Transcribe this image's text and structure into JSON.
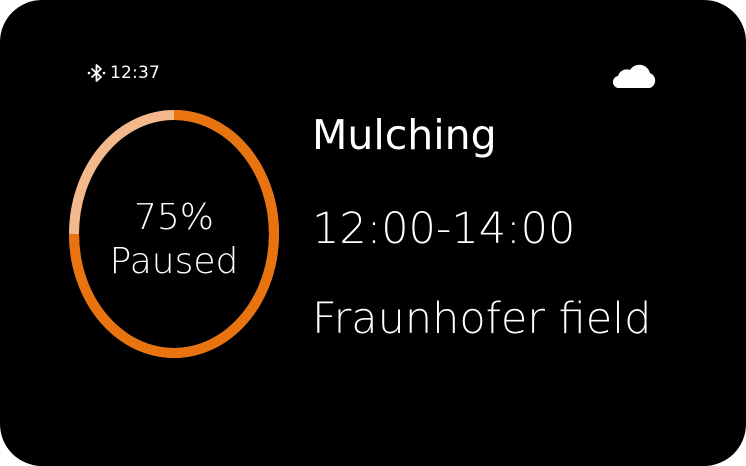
{
  "status": {
    "time": "12:37",
    "bluetooth_icon": "bluetooth-icon",
    "weather_icon": "cloud-icon"
  },
  "progress": {
    "percent_label": "75%",
    "state": "Paused",
    "fraction": 0.75,
    "color_done": "#e8730f",
    "color_remaining": "#f3b88b"
  },
  "task": {
    "title": "Mulching",
    "time_range": "12:00-14:00",
    "location": "Fraunhofer field"
  }
}
